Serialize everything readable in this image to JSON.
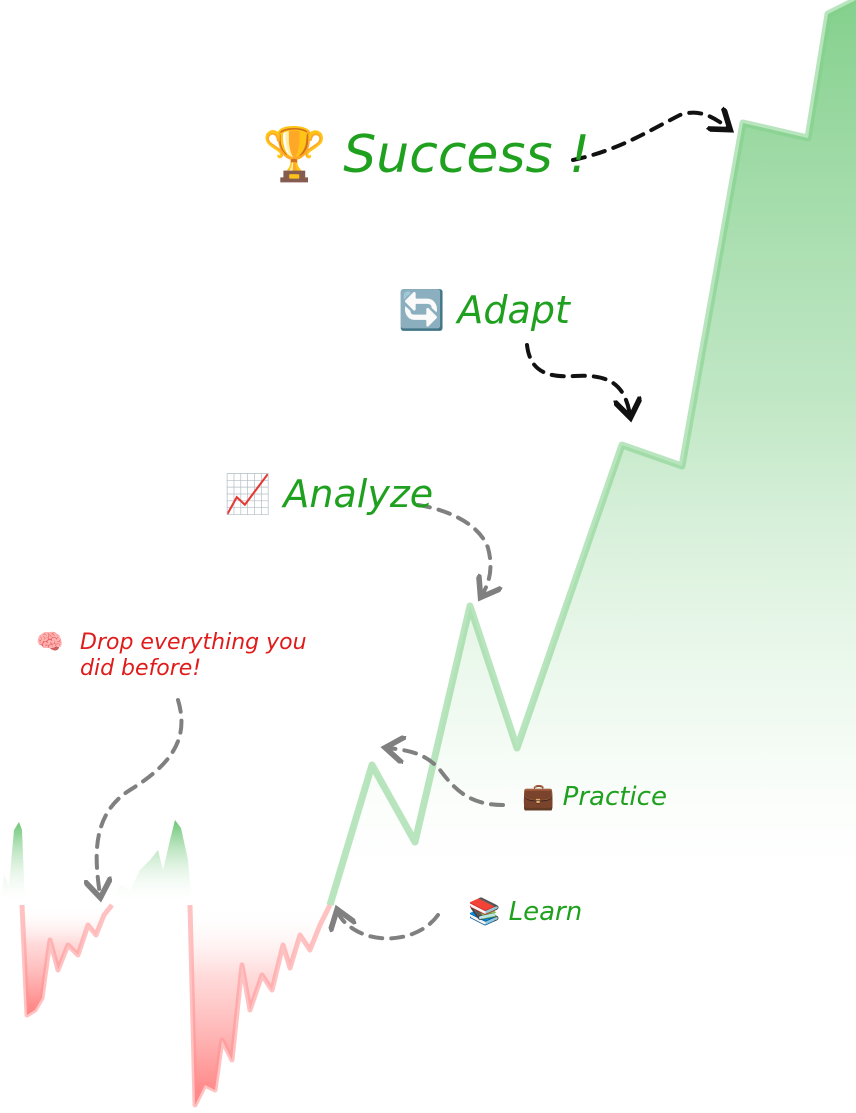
{
  "colors": {
    "green_text": "#1fa11f",
    "red_text": "#e01b1b",
    "green_fill": "#6fc879",
    "red_fill": "#ff7f7f",
    "arrow_dark": "#111111",
    "arrow_gray": "#808080"
  },
  "steps": [
    {
      "id": "success",
      "icon": "trophy-icon",
      "label": "Success !"
    },
    {
      "id": "adapt",
      "icon": "arrows-cycle-icon",
      "label": "Adapt"
    },
    {
      "id": "analyze",
      "icon": "chart-increasing-icon",
      "label": "Analyze"
    },
    {
      "id": "drop",
      "icon": "brain-icon",
      "label_line1": "Drop everything you",
      "label_line2": "did before!"
    },
    {
      "id": "practice",
      "icon": "briefcase-icon",
      "label": "Practice"
    },
    {
      "id": "learn",
      "icon": "books-icon",
      "label": "Learn"
    }
  ]
}
